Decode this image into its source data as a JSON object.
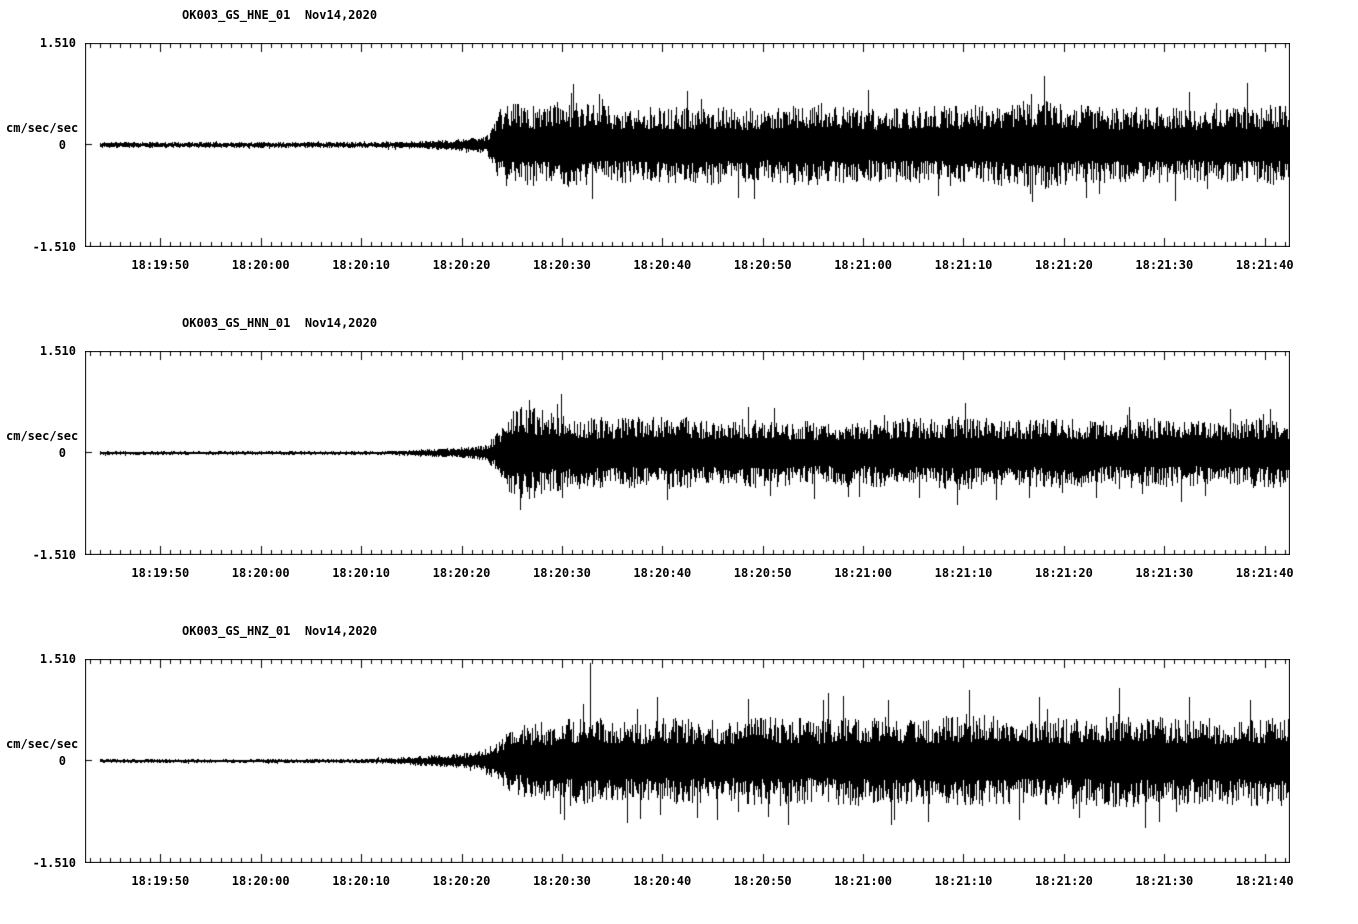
{
  "page": {
    "background": "#ffffff",
    "trace_color": "#000000",
    "axis_color": "#000000"
  },
  "time_axis": {
    "tick_interval_seconds": 1,
    "label_interval_seconds": 10,
    "first_label_offset_seconds": 7.5,
    "total_span_seconds": 120,
    "x_tick_labels": [
      "18:19:50",
      "18:20:00",
      "18:20:10",
      "18:20:20",
      "18:20:30",
      "18:20:40",
      "18:20:50",
      "18:21:00",
      "18:21:10",
      "18:21:20",
      "18:21:30",
      "18:21:40"
    ]
  },
  "chart_data": [
    {
      "type": "line",
      "subtype": "seismogram",
      "title": "OK003_GS_HNE_01  Nov14,2020",
      "station": "OK003",
      "network": "GS",
      "channel": "HNE",
      "location": "01",
      "date": "Nov14,2020",
      "ylabel": "cm/sec/sec",
      "ylim": [
        -1.51,
        1.51
      ],
      "y_tick_labels": [
        "1.510",
        "0",
        "-1.510"
      ],
      "x_tick_labels": [
        "18:19:50",
        "18:20:00",
        "18:20:10",
        "18:20:20",
        "18:20:30",
        "18:20:40",
        "18:20:50",
        "18:21:00",
        "18:21:10",
        "18:21:20",
        "18:21:30",
        "18:21:40"
      ],
      "grid": false,
      "legend": "none",
      "envelope": [
        [
          0,
          0.045
        ],
        [
          29,
          0.045
        ],
        [
          33,
          0.06
        ],
        [
          37,
          0.09
        ],
        [
          40,
          0.13
        ],
        [
          41,
          0.5
        ],
        [
          42,
          0.62
        ],
        [
          45,
          0.6
        ],
        [
          48,
          0.66
        ],
        [
          52,
          0.58
        ],
        [
          57,
          0.55
        ],
        [
          62,
          0.6
        ],
        [
          67,
          0.55
        ],
        [
          72,
          0.6
        ],
        [
          78,
          0.56
        ],
        [
          84,
          0.58
        ],
        [
          90,
          0.6
        ],
        [
          95,
          0.68
        ],
        [
          98,
          0.6
        ],
        [
          103,
          0.56
        ],
        [
          108,
          0.58
        ],
        [
          113,
          0.55
        ],
        [
          118,
          0.6
        ],
        [
          121,
          0.58
        ]
      ],
      "spikes": [
        [
          48.6,
          0.9
        ],
        [
          50.5,
          -0.8
        ],
        [
          60,
          0.8
        ],
        [
          65,
          -0.78
        ],
        [
          78,
          0.82
        ],
        [
          85,
          -0.75
        ],
        [
          95.5,
          1.02
        ],
        [
          101,
          -0.72
        ],
        [
          110,
          0.78
        ],
        [
          115.7,
          0.92
        ]
      ],
      "seed": 1001
    },
    {
      "type": "line",
      "subtype": "seismogram",
      "title": "OK003_GS_HNN_01  Nov14,2020",
      "station": "OK003",
      "network": "GS",
      "channel": "HNN",
      "location": "01",
      "date": "Nov14,2020",
      "ylabel": "cm/sec/sec",
      "ylim": [
        -1.51,
        1.51
      ],
      "y_tick_labels": [
        "1.510",
        "0",
        "-1.510"
      ],
      "x_tick_labels": [
        "18:19:50",
        "18:20:00",
        "18:20:10",
        "18:20:20",
        "18:20:30",
        "18:20:40",
        "18:20:50",
        "18:21:00",
        "18:21:10",
        "18:21:20",
        "18:21:30",
        "18:21:40"
      ],
      "grid": false,
      "legend": "none",
      "envelope": [
        [
          0,
          0.028
        ],
        [
          29,
          0.028
        ],
        [
          33,
          0.05
        ],
        [
          37,
          0.08
        ],
        [
          40,
          0.12
        ],
        [
          41.5,
          0.4
        ],
        [
          42.5,
          0.65
        ],
        [
          44,
          0.72
        ],
        [
          46,
          0.62
        ],
        [
          49,
          0.55
        ],
        [
          53,
          0.52
        ],
        [
          58,
          0.55
        ],
        [
          63,
          0.5
        ],
        [
          68,
          0.52
        ],
        [
          73,
          0.47
        ],
        [
          78,
          0.5
        ],
        [
          83,
          0.52
        ],
        [
          87,
          0.56
        ],
        [
          92,
          0.5
        ],
        [
          97,
          0.52
        ],
        [
          102,
          0.48
        ],
        [
          107,
          0.52
        ],
        [
          112,
          0.48
        ],
        [
          117,
          0.52
        ],
        [
          121,
          0.5
        ]
      ],
      "spikes": [
        [
          43.3,
          -0.85
        ],
        [
          44.2,
          0.78
        ],
        [
          47,
          0.72
        ],
        [
          58,
          -0.7
        ],
        [
          66,
          0.68
        ],
        [
          76,
          -0.65
        ],
        [
          87.6,
          0.74
        ],
        [
          94,
          -0.66
        ],
        [
          104,
          0.68
        ],
        [
          114,
          0.65
        ]
      ],
      "seed": 2077
    },
    {
      "type": "line",
      "subtype": "seismogram",
      "title": "OK003_GS_HNZ_01  Nov14,2020",
      "station": "OK003",
      "network": "GS",
      "channel": "HNZ",
      "location": "01",
      "date": "Nov14,2020",
      "ylabel": "cm/sec/sec",
      "ylim": [
        -1.51,
        1.51
      ],
      "y_tick_labels": [
        "1.510",
        "0",
        "-1.510"
      ],
      "x_tick_labels": [
        "18:19:50",
        "18:20:00",
        "18:20:10",
        "18:20:20",
        "18:20:30",
        "18:20:40",
        "18:20:50",
        "18:21:00",
        "18:21:10",
        "18:21:20",
        "18:21:30",
        "18:21:40"
      ],
      "grid": false,
      "legend": "none",
      "envelope": [
        [
          0,
          0.03
        ],
        [
          27,
          0.03
        ],
        [
          31,
          0.05
        ],
        [
          35,
          0.09
        ],
        [
          39,
          0.14
        ],
        [
          41,
          0.3
        ],
        [
          42.5,
          0.5
        ],
        [
          45,
          0.58
        ],
        [
          48,
          0.62
        ],
        [
          51,
          0.66
        ],
        [
          54,
          0.6
        ],
        [
          58,
          0.64
        ],
        [
          63,
          0.62
        ],
        [
          68,
          0.66
        ],
        [
          73,
          0.63
        ],
        [
          78,
          0.68
        ],
        [
          83,
          0.65
        ],
        [
          88,
          0.7
        ],
        [
          93,
          0.66
        ],
        [
          98,
          0.64
        ],
        [
          103,
          0.7
        ],
        [
          108,
          0.66
        ],
        [
          113,
          0.64
        ],
        [
          118,
          0.68
        ],
        [
          121,
          0.66
        ]
      ],
      "spikes": [
        [
          50.3,
          1.45
        ],
        [
          54,
          -0.92
        ],
        [
          57,
          0.95
        ],
        [
          61,
          -0.85
        ],
        [
          66,
          0.92
        ],
        [
          70,
          -0.95
        ],
        [
          74,
          1.0
        ],
        [
          80,
          0.9
        ],
        [
          84,
          -0.9
        ],
        [
          88,
          1.05
        ],
        [
          93,
          -0.88
        ],
        [
          95,
          0.95
        ],
        [
          99,
          -0.85
        ],
        [
          103,
          1.08
        ],
        [
          107,
          -0.9
        ],
        [
          110,
          0.95
        ],
        [
          116,
          0.9
        ]
      ],
      "seed": 3093
    }
  ]
}
